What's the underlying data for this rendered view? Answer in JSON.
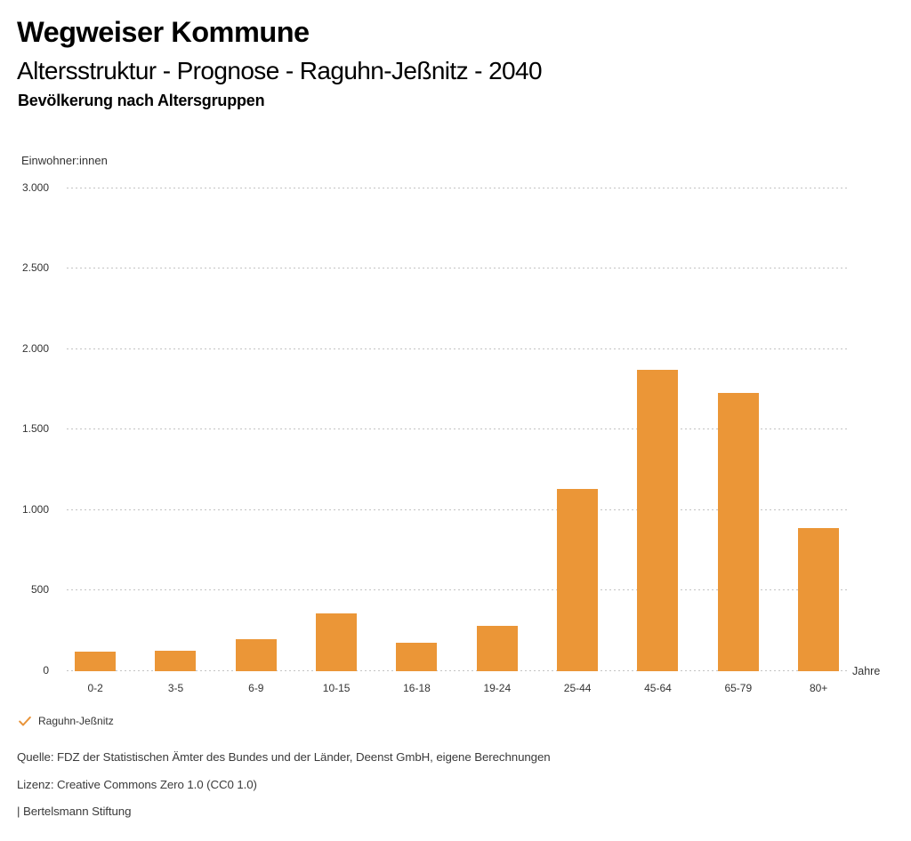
{
  "header": {
    "title": "Wegweiser Kommune",
    "subtitle": "Altersstruktur - Prognose - Raguhn-Jeßnitz - 2040",
    "section_title": "Bevölkerung nach Altersgruppen"
  },
  "chart_data": {
    "type": "bar",
    "title": "Bevölkerung nach Altersgruppen",
    "categories": [
      "0-2",
      "3-5",
      "6-9",
      "10-15",
      "16-18",
      "19-24",
      "25-44",
      "45-64",
      "65-79",
      "80+"
    ],
    "series": [
      {
        "name": "Raguhn-Jeßnitz",
        "color": "#EB9637",
        "values": [
          123,
          128,
          199,
          358,
          179,
          283,
          1134,
          1870,
          1727,
          891
        ]
      }
    ],
    "xlabel": "Jahre",
    "ylabel": "Einwohner:innen",
    "ylim": [
      0,
      3000
    ],
    "yticks": [
      0,
      500,
      1000,
      1500,
      2000,
      2500,
      3000
    ],
    "ytick_labels": [
      "0",
      "500",
      "1.000",
      "1.500",
      "2.000",
      "2.500",
      "3.000"
    ],
    "grid": "dotted-horizontal",
    "legend_position": "bottom-left"
  },
  "legend": {
    "label": "Raguhn-Jeßnitz",
    "marker": "checkmark",
    "marker_color": "#E8943A"
  },
  "footer": {
    "source": "Quelle: FDZ der Statistischen Ämter des Bundes und der Länder, Deenst GmbH, eigene Berechnungen",
    "license": "Lizenz: Creative Commons Zero 1.0 (CC0 1.0)",
    "attribution": "| Bertelsmann Stiftung"
  }
}
